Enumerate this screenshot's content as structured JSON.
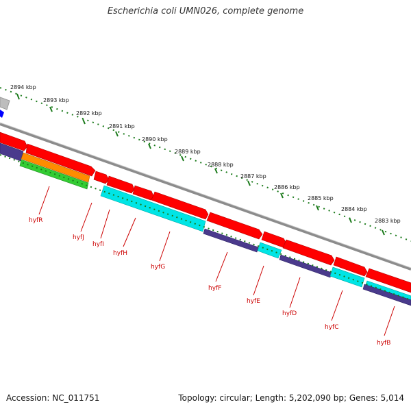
{
  "header": {
    "title": "Escherichia coli UMN026, complete genome"
  },
  "footer": {
    "accession": "Accession: NC_011751",
    "summary": "Topology: circular; Length: 5,202,090 bp; Genes: 5,014"
  },
  "ruler": {
    "labels": [
      "2894 kbp",
      "2893 kbp",
      "2892 kbp",
      "2891 kbp",
      "2890 kbp",
      "2889 kbp",
      "2888 kbp",
      "2887 kbp",
      "2886 kbp",
      "2885 kbp",
      "2884 kbp",
      "2883 kbp"
    ]
  },
  "genes": [
    "hyfR",
    "hyfJ",
    "hyfI",
    "hyfH",
    "hyfG",
    "hyfF",
    "hyfE",
    "hyfD",
    "hyfC",
    "hyfB"
  ],
  "colors": {
    "cds": "#ff0000",
    "tick": "#1a7a1a",
    "backbone": "#8c8c8c",
    "cyan": "#00e5e5",
    "navy": "#4a3a8c",
    "orange": "#ff8c00",
    "green": "#33cc33",
    "gene_label": "#cc0000",
    "blue_marker": "#0000ff"
  }
}
